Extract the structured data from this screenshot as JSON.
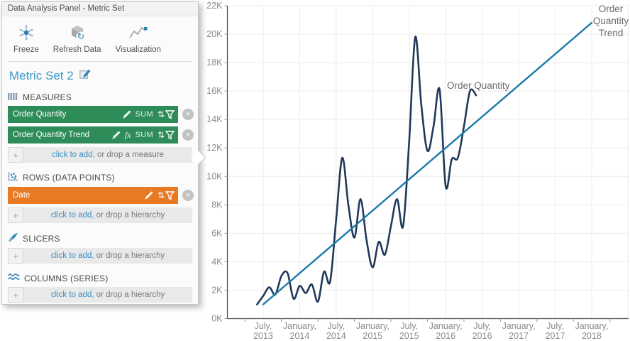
{
  "panel": {
    "header": "Data Analysis Panel - Metric Set",
    "toolbar": {
      "freeze": "Freeze",
      "refresh": "Refresh Data",
      "visualization": "Visualization"
    },
    "title": "Metric Set 2",
    "icons": {
      "plus": "+",
      "formula": "fx",
      "remove": "×",
      "sort_arrows": "⇅"
    },
    "sections": {
      "measures": {
        "label": "MEASURES",
        "items": [
          {
            "label": "Order Quantity",
            "aggregator": "SUM"
          },
          {
            "label": "Order Quantity Trend",
            "aggregator": "SUM",
            "formula": true
          }
        ],
        "add": {
          "link": "click to add,",
          "rest": " or drop a measure"
        }
      },
      "rows": {
        "label": "ROWS (DATA POINTS)",
        "items": [
          {
            "label": "Date"
          }
        ],
        "add": {
          "link": "click to add,",
          "rest": " or drop a hierarchy"
        }
      },
      "slicers": {
        "label": "SLICERS",
        "add": {
          "link": "click to add,",
          "rest": " or drop a hierarchy"
        }
      },
      "columns": {
        "label": "COLUMNS (SERIES)",
        "add": {
          "link": "click to add,",
          "rest": " or drop a hierarchy"
        }
      }
    },
    "colors": {
      "measure_green": "#2e8c58",
      "dimension_orange": "#e87a24",
      "link_blue": "#3d8fc6",
      "title_blue": "#3d96c7"
    }
  },
  "chart_data": {
    "type": "line",
    "title": "",
    "xlabel": "",
    "ylabel": "",
    "grid": true,
    "legend": "inline-labels",
    "y_axis": {
      "min": 0,
      "max": 22,
      "unit": "K",
      "ticks": [
        {
          "value": 0,
          "label": "0K"
        },
        {
          "value": 2,
          "label": "2K"
        },
        {
          "value": 4,
          "label": "4K"
        },
        {
          "value": 6,
          "label": "6K"
        },
        {
          "value": 8,
          "label": "8K"
        },
        {
          "value": 10,
          "label": "10K"
        },
        {
          "value": 12,
          "label": "12K"
        },
        {
          "value": 14,
          "label": "14K"
        },
        {
          "value": 16,
          "label": "16K"
        },
        {
          "value": 18,
          "label": "18K"
        },
        {
          "value": 20,
          "label": "20K"
        },
        {
          "value": 22,
          "label": "22K"
        }
      ]
    },
    "x_axis": {
      "ticks": [
        {
          "month": "2013-07",
          "line1": "July,",
          "line2": "2013"
        },
        {
          "month": "2014-01",
          "line1": "January,",
          "line2": "2014"
        },
        {
          "month": "2014-07",
          "line1": "July,",
          "line2": "2014"
        },
        {
          "month": "2015-01",
          "line1": "January,",
          "line2": "2015"
        },
        {
          "month": "2015-07",
          "line1": "July,",
          "line2": "2015"
        },
        {
          "month": "2016-01",
          "line1": "January,",
          "line2": "2016"
        },
        {
          "month": "2016-07",
          "line1": "July,",
          "line2": "2016"
        },
        {
          "month": "2017-01",
          "line1": "January,",
          "line2": "2017"
        },
        {
          "month": "2017-07",
          "line1": "July,",
          "line2": "2017"
        },
        {
          "month": "2018-01",
          "line1": "January,",
          "line2": "2018"
        }
      ],
      "extra_gridline_month": "2018-07"
    },
    "series": [
      {
        "name": "Order Quantity",
        "color": "#20395a",
        "style": "smooth",
        "months": [
          "2013-06",
          "2013-07",
          "2013-08",
          "2013-09",
          "2013-10",
          "2013-11",
          "2013-12",
          "2014-01",
          "2014-02",
          "2014-03",
          "2014-04",
          "2014-05",
          "2014-06",
          "2014-07",
          "2014-08",
          "2014-09",
          "2014-10",
          "2014-11",
          "2014-12",
          "2015-01",
          "2015-02",
          "2015-03",
          "2015-04",
          "2015-05",
          "2015-06",
          "2015-07",
          "2015-08",
          "2015-09",
          "2015-10",
          "2015-11",
          "2015-12",
          "2016-01",
          "2016-02",
          "2016-03",
          "2016-04",
          "2016-05",
          "2016-06"
        ],
        "values_thousands": [
          1.0,
          1.6,
          2.2,
          1.7,
          3.0,
          3.2,
          1.4,
          2.3,
          1.8,
          2.4,
          1.2,
          3.3,
          2.6,
          7.0,
          11.3,
          8.0,
          5.7,
          8.4,
          5.5,
          3.6,
          5.4,
          4.5,
          6.5,
          8.4,
          6.5,
          12.5,
          19.8,
          15.0,
          11.8,
          13.5,
          16.1,
          9.3,
          11.2,
          11.3,
          13.5,
          16.0,
          15.7
        ]
      },
      {
        "name": "Order Quantity Trend",
        "color": "#1879ab",
        "style": "straight",
        "months": [
          "2013-07",
          "2018-01"
        ],
        "values_thousands": [
          1.0,
          20.8
        ]
      }
    ]
  }
}
